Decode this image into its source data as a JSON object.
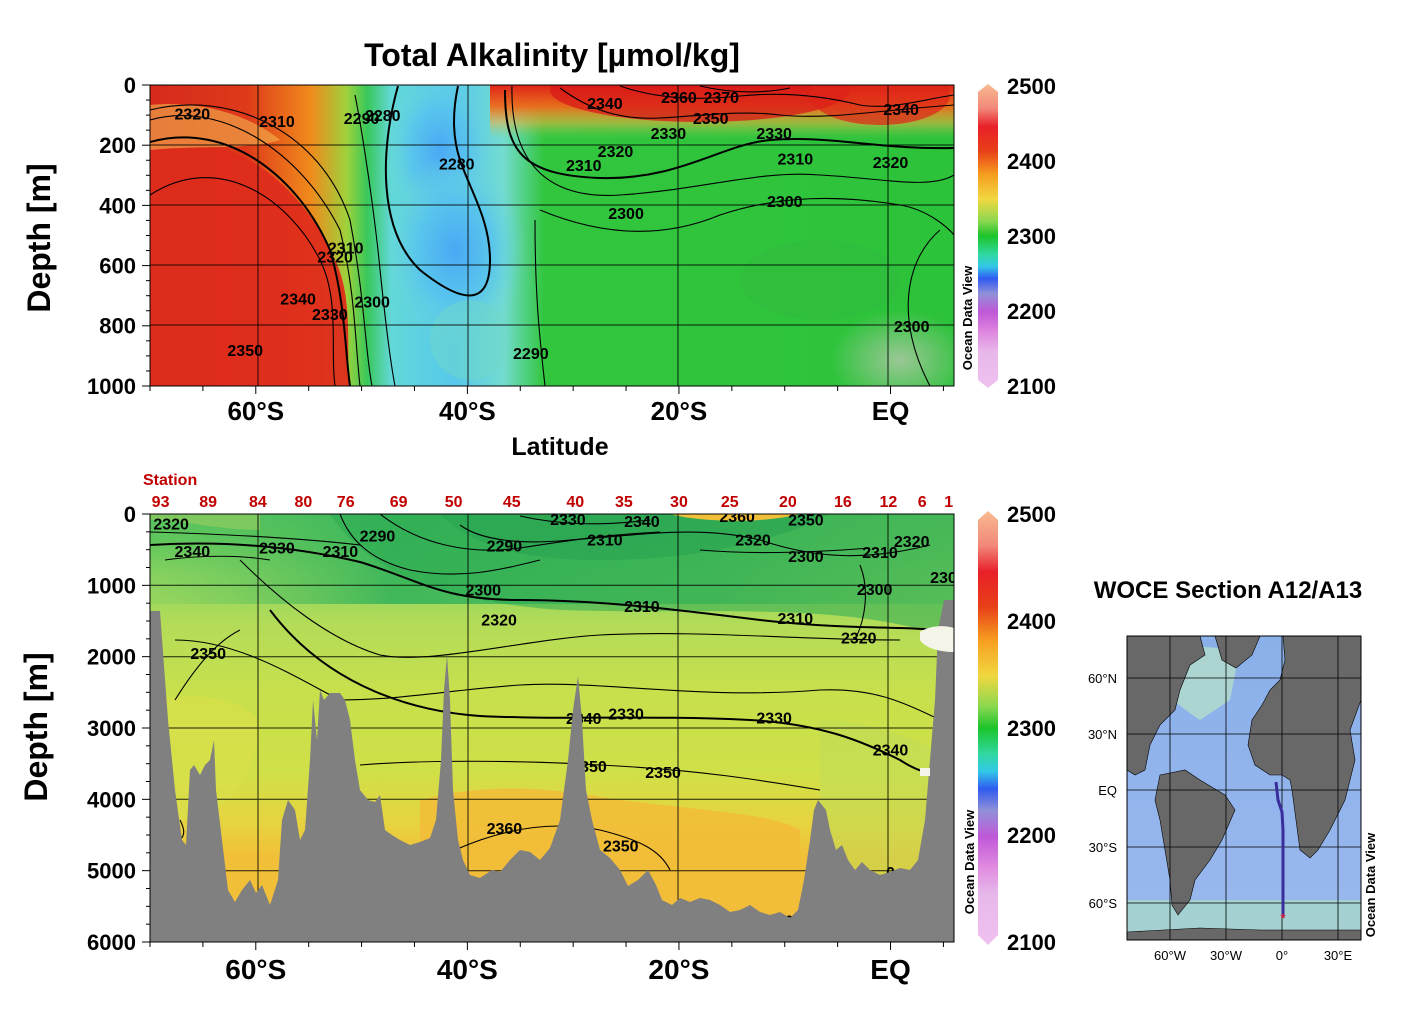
{
  "chart_data": [
    {
      "type": "heatmap",
      "title": "Total Alkalinity [µmol/kg]",
      "xlabel": "Latitude",
      "ylabel": "Depth [m]",
      "x_ticks": [
        "60°S",
        "40°S",
        "20°S",
        "EQ"
      ],
      "y_ticks": [
        0,
        200,
        400,
        600,
        800,
        1000
      ],
      "ylim": [
        0,
        1000
      ],
      "xlim_lat": [
        -70,
        6
      ],
      "colorbar": {
        "ticks": [
          2100,
          2200,
          2300,
          2400,
          2500
        ],
        "range": [
          2100,
          2500
        ]
      },
      "contour_labels": [
        {
          "text": "2310",
          "lat": -58,
          "depth": 120
        },
        {
          "text": "2320",
          "lat": -66,
          "depth": 95
        },
        {
          "text": "2290",
          "lat": -50,
          "depth": 110
        },
        {
          "text": "2280",
          "lat": -48,
          "depth": 100
        },
        {
          "text": "2280",
          "lat": -41,
          "depth": 260
        },
        {
          "text": "2340",
          "lat": -27,
          "depth": 60
        },
        {
          "text": "2360",
          "lat": -20,
          "depth": 40
        },
        {
          "text": "2350",
          "lat": -17,
          "depth": 110
        },
        {
          "text": "2370",
          "lat": -16,
          "depth": 40
        },
        {
          "text": "2330",
          "lat": -21,
          "depth": 160
        },
        {
          "text": "2320",
          "lat": -26,
          "depth": 220
        },
        {
          "text": "2310",
          "lat": -29,
          "depth": 265
        },
        {
          "text": "2330",
          "lat": -11,
          "depth": 160
        },
        {
          "text": "2310",
          "lat": -9,
          "depth": 245
        },
        {
          "text": "2320",
          "lat": 0,
          "depth": 255
        },
        {
          "text": "2340",
          "lat": 1,
          "depth": 80
        },
        {
          "text": "2300",
          "lat": -25,
          "depth": 425
        },
        {
          "text": "2300",
          "lat": -10,
          "depth": 385
        },
        {
          "text": "2310",
          "lat": -51.5,
          "depth": 540
        },
        {
          "text": "2320",
          "lat": -52.5,
          "depth": 570
        },
        {
          "text": "2340",
          "lat": -56,
          "depth": 710
        },
        {
          "text": "2330",
          "lat": -53,
          "depth": 760
        },
        {
          "text": "2300",
          "lat": -49,
          "depth": 720
        },
        {
          "text": "2350",
          "lat": -61,
          "depth": 880
        },
        {
          "text": "2290",
          "lat": -34,
          "depth": 890
        },
        {
          "text": "2300",
          "lat": 2,
          "depth": 800
        }
      ]
    },
    {
      "type": "heatmap",
      "ylabel": "Depth [m]",
      "x_ticks": [
        "60°S",
        "40°S",
        "20°S",
        "EQ"
      ],
      "y_ticks": [
        0,
        1000,
        2000,
        3000,
        4000,
        5000,
        6000
      ],
      "ylim": [
        0,
        6000
      ],
      "xlim_lat": [
        -70,
        6
      ],
      "station_title": "Station",
      "stations": [
        {
          "label": "93",
          "lat": -69.0
        },
        {
          "label": "89",
          "lat": -64.5
        },
        {
          "label": "84",
          "lat": -59.8
        },
        {
          "label": "80",
          "lat": -55.5
        },
        {
          "label": "76",
          "lat": -51.5
        },
        {
          "label": "69",
          "lat": -46.5
        },
        {
          "label": "50",
          "lat": -41.3
        },
        {
          "label": "45",
          "lat": -35.8
        },
        {
          "label": "40",
          "lat": -29.8
        },
        {
          "label": "35",
          "lat": -25.2
        },
        {
          "label": "30",
          "lat": -20.0
        },
        {
          "label": "25",
          "lat": -15.2
        },
        {
          "label": "20",
          "lat": -9.7
        },
        {
          "label": "16",
          "lat": -4.5
        },
        {
          "label": "12",
          "lat": -0.2
        },
        {
          "label": "6",
          "lat": 3.0
        },
        {
          "label": "1",
          "lat": 5.5
        }
      ],
      "colorbar": {
        "ticks": [
          2100,
          2200,
          2300,
          2400,
          2500
        ],
        "range": [
          2100,
          2500
        ]
      },
      "contour_labels": [
        {
          "text": "2320",
          "lat": -68,
          "depth": 130
        },
        {
          "text": "2340",
          "lat": -66,
          "depth": 520
        },
        {
          "text": "2330",
          "lat": -58,
          "depth": 470
        },
        {
          "text": "2310",
          "lat": -52,
          "depth": 520
        },
        {
          "text": "2290",
          "lat": -48.5,
          "depth": 300
        },
        {
          "text": "2290",
          "lat": -36.5,
          "depth": 440
        },
        {
          "text": "2330",
          "lat": -30.5,
          "depth": 70
        },
        {
          "text": "2340",
          "lat": -23.5,
          "depth": 100
        },
        {
          "text": "2310",
          "lat": -27,
          "depth": 360
        },
        {
          "text": "2360",
          "lat": -14.5,
          "depth": 30
        },
        {
          "text": "2350",
          "lat": -8,
          "depth": 80
        },
        {
          "text": "2320",
          "lat": -13,
          "depth": 360
        },
        {
          "text": "2300",
          "lat": -8,
          "depth": 590
        },
        {
          "text": "2310",
          "lat": -1,
          "depth": 530
        },
        {
          "text": "2320",
          "lat": 2,
          "depth": 380
        },
        {
          "text": "2300",
          "lat": -1.5,
          "depth": 1050
        },
        {
          "text": "230",
          "lat": 5,
          "depth": 880
        },
        {
          "text": "2300",
          "lat": -38.5,
          "depth": 1060
        },
        {
          "text": "2310",
          "lat": -23.5,
          "depth": 1290
        },
        {
          "text": "2320",
          "lat": -37,
          "depth": 1480
        },
        {
          "text": "2310",
          "lat": -9,
          "depth": 1460
        },
        {
          "text": "2320",
          "lat": -3,
          "depth": 1730
        },
        {
          "text": "2350",
          "lat": -64.5,
          "depth": 1950
        },
        {
          "text": "2330",
          "lat": -25,
          "depth": 2800
        },
        {
          "text": "2330",
          "lat": -11,
          "depth": 2850
        },
        {
          "text": "2340",
          "lat": -29,
          "depth": 2860
        },
        {
          "text": "2340",
          "lat": 0,
          "depth": 3300
        },
        {
          "text": "2350",
          "lat": -28.5,
          "depth": 3530
        },
        {
          "text": "2350",
          "lat": -21.5,
          "depth": 3620
        },
        {
          "text": "2360",
          "lat": -36.5,
          "depth": 4400
        },
        {
          "text": "2350",
          "lat": -25.5,
          "depth": 4650
        },
        {
          "text": "0",
          "lat": -67.5,
          "depth": 4430
        },
        {
          "text": "50",
          "lat": -10,
          "depth": 5700
        },
        {
          "text": "0",
          "lat": 0,
          "depth": 5020
        }
      ]
    }
  ],
  "branding": {
    "odv_label": "Ocean Data View"
  },
  "map": {
    "title": "WOCE Section A12/A13",
    "lat_ticks": [
      "60°N",
      "30°N",
      "EQ",
      "30°S",
      "60°S"
    ],
    "lon_ticks": [
      "60°W",
      "30°W",
      "0°",
      "30°E"
    ]
  },
  "colors": {
    "line": "#000000",
    "station": "#c00000",
    "topography": "#808080",
    "track": "#3a2d9c",
    "track_start": "#ff2020"
  }
}
